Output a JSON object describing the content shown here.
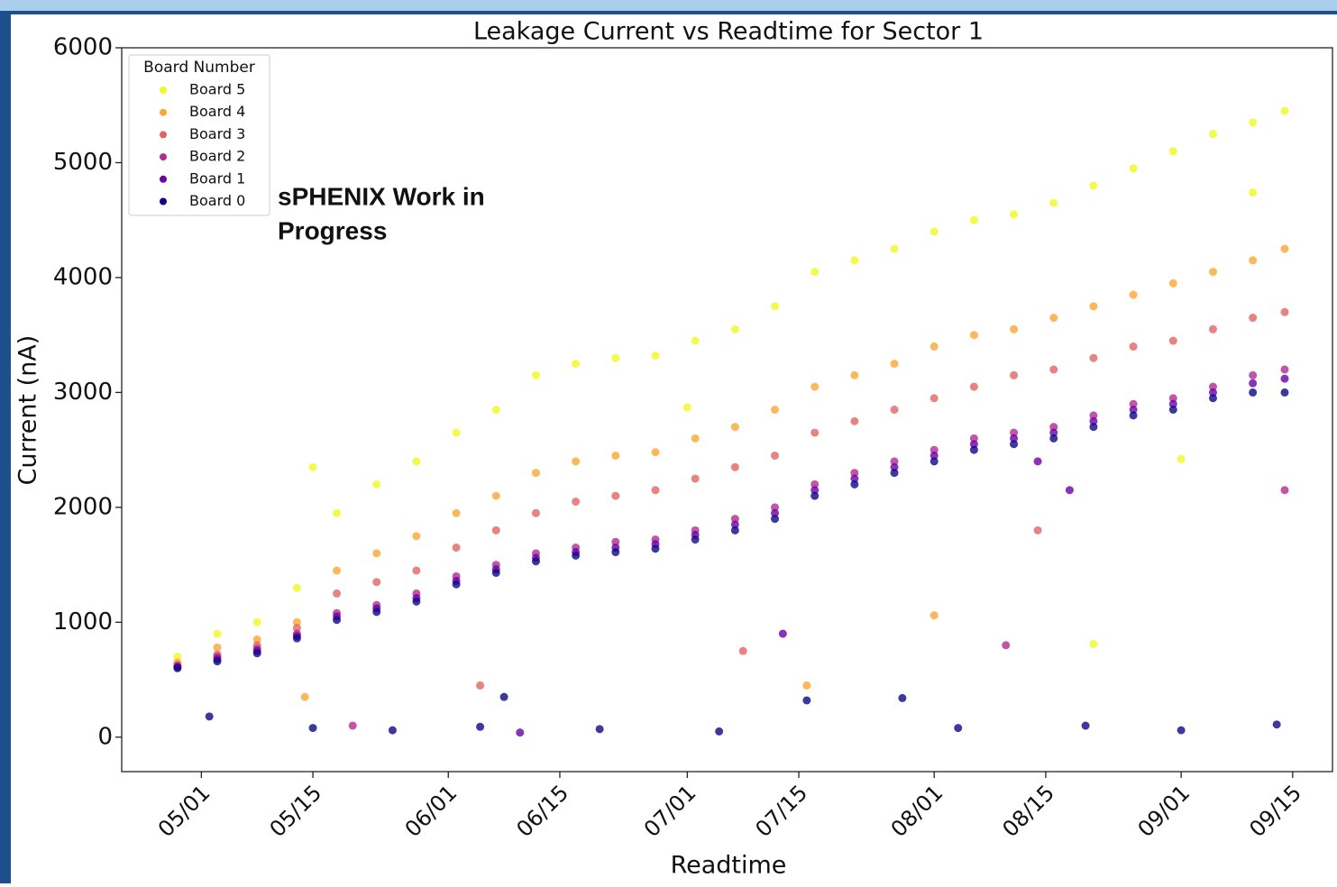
{
  "chart_data": {
    "type": "scatter",
    "title": "Leakage Current vs Readtime for Sector 1",
    "x_label": "Readtime",
    "y_label": "Current (nA)",
    "legend_title": "Board Number",
    "legend": "upper left",
    "annotation": [
      "sPHENIX Work in",
      "Progress"
    ],
    "xlim": [
      "04/21",
      "09/20"
    ],
    "xticks": [
      "05/01",
      "05/15",
      "06/01",
      "06/15",
      "07/01",
      "07/15",
      "08/01",
      "08/15",
      "09/01",
      "09/15"
    ],
    "ylim": [
      -300,
      6000
    ],
    "yticks": [
      0,
      1000,
      2000,
      3000,
      4000,
      5000,
      6000
    ],
    "series": [
      {
        "name": "Board 5",
        "color": "#f0f921",
        "x": [
          "04/28",
          "05/03",
          "05/08",
          "05/13",
          "05/18",
          "05/23",
          "05/28",
          "06/02",
          "06/07",
          "06/12",
          "06/17",
          "06/22",
          "06/27",
          "07/02",
          "07/07",
          "07/12",
          "07/17",
          "07/22",
          "07/27",
          "08/01",
          "08/06",
          "08/11",
          "08/16",
          "08/21",
          "08/26",
          "08/31",
          "09/05",
          "09/10",
          "09/14",
          "05/15",
          "07/01",
          "09/10",
          "09/01",
          "08/21"
        ],
        "values": [
          700,
          900,
          1000,
          1300,
          1950,
          2200,
          2400,
          2650,
          2850,
          3150,
          3250,
          3300,
          3320,
          3450,
          3550,
          3750,
          4050,
          4150,
          4250,
          4400,
          4500,
          4550,
          4650,
          4800,
          4950,
          5100,
          5250,
          5350,
          5450,
          2350,
          2870,
          4740,
          2420,
          810
        ]
      },
      {
        "name": "Board 4",
        "color": "#fca636",
        "x": [
          "04/28",
          "05/03",
          "05/08",
          "05/13",
          "05/18",
          "05/23",
          "05/28",
          "06/02",
          "06/07",
          "06/12",
          "06/17",
          "06/22",
          "06/27",
          "07/02",
          "07/07",
          "07/12",
          "07/17",
          "07/22",
          "07/27",
          "08/01",
          "08/06",
          "08/11",
          "08/16",
          "08/21",
          "08/26",
          "08/31",
          "09/05",
          "09/10",
          "09/14",
          "05/14",
          "07/16",
          "08/01"
        ],
        "values": [
          650,
          780,
          850,
          1000,
          1450,
          1600,
          1750,
          1950,
          2100,
          2300,
          2400,
          2450,
          2480,
          2600,
          2700,
          2850,
          3050,
          3150,
          3250,
          3400,
          3500,
          3550,
          3650,
          3750,
          3850,
          3950,
          4050,
          4150,
          4250,
          350,
          450,
          1060
        ]
      },
      {
        "name": "Board 3",
        "color": "#e16462",
        "x": [
          "04/28",
          "05/03",
          "05/08",
          "05/13",
          "05/18",
          "05/23",
          "05/28",
          "06/02",
          "06/07",
          "06/12",
          "06/17",
          "06/22",
          "06/27",
          "07/02",
          "07/07",
          "07/12",
          "07/17",
          "07/22",
          "07/27",
          "08/01",
          "08/06",
          "08/11",
          "08/16",
          "08/21",
          "08/26",
          "08/31",
          "09/05",
          "09/10",
          "09/14",
          "06/05",
          "07/08",
          "08/14"
        ],
        "values": [
          630,
          720,
          800,
          950,
          1250,
          1350,
          1450,
          1650,
          1800,
          1950,
          2050,
          2100,
          2150,
          2250,
          2350,
          2450,
          2650,
          2750,
          2850,
          2950,
          3050,
          3150,
          3200,
          3300,
          3400,
          3450,
          3550,
          3650,
          3700,
          450,
          750,
          1800
        ]
      },
      {
        "name": "Board 2",
        "color": "#b12a90",
        "x": [
          "04/28",
          "05/03",
          "05/08",
          "05/13",
          "05/18",
          "05/23",
          "05/28",
          "06/02",
          "06/07",
          "06/12",
          "06/17",
          "06/22",
          "06/27",
          "07/02",
          "07/07",
          "07/12",
          "07/17",
          "07/22",
          "07/27",
          "08/01",
          "08/06",
          "08/11",
          "08/16",
          "08/21",
          "08/26",
          "08/31",
          "09/05",
          "09/10",
          "09/14",
          "05/20",
          "08/10",
          "09/14"
        ],
        "values": [
          620,
          700,
          770,
          900,
          1080,
          1150,
          1250,
          1400,
          1500,
          1600,
          1650,
          1700,
          1720,
          1800,
          1900,
          2000,
          2200,
          2300,
          2400,
          2500,
          2600,
          2650,
          2700,
          2800,
          2900,
          2950,
          3050,
          3150,
          3200,
          100,
          800,
          2150
        ]
      },
      {
        "name": "Board 1",
        "color": "#6a00a8",
        "x": [
          "04/28",
          "05/03",
          "05/08",
          "05/13",
          "05/18",
          "05/23",
          "05/28",
          "06/02",
          "06/07",
          "06/12",
          "06/17",
          "06/22",
          "06/27",
          "07/02",
          "07/07",
          "07/12",
          "07/17",
          "07/22",
          "07/27",
          "08/01",
          "08/06",
          "08/11",
          "08/16",
          "08/21",
          "08/26",
          "08/31",
          "09/05",
          "09/10",
          "09/14",
          "06/10",
          "07/13",
          "08/14",
          "08/18"
        ],
        "values": [
          610,
          680,
          750,
          880,
          1050,
          1120,
          1210,
          1360,
          1460,
          1560,
          1610,
          1650,
          1680,
          1760,
          1850,
          1950,
          2150,
          2250,
          2350,
          2450,
          2550,
          2600,
          2650,
          2750,
          2850,
          2900,
          3000,
          3080,
          3120,
          40,
          900,
          2400,
          2150
        ]
      },
      {
        "name": "Board 0",
        "color": "#0d0887",
        "x": [
          "04/28",
          "05/03",
          "05/08",
          "05/13",
          "05/18",
          "05/23",
          "05/28",
          "06/02",
          "06/07",
          "06/12",
          "06/17",
          "06/22",
          "06/27",
          "07/02",
          "07/07",
          "07/12",
          "07/17",
          "07/22",
          "07/27",
          "08/01",
          "08/06",
          "08/11",
          "08/16",
          "08/21",
          "08/26",
          "08/31",
          "09/05",
          "09/10",
          "09/14",
          "05/02",
          "05/15",
          "05/25",
          "06/05",
          "06/08",
          "06/20",
          "07/05",
          "07/16",
          "07/28",
          "08/04",
          "08/20",
          "09/01",
          "09/13"
        ],
        "values": [
          600,
          660,
          730,
          860,
          1020,
          1090,
          1180,
          1330,
          1430,
          1530,
          1580,
          1610,
          1640,
          1720,
          1800,
          1900,
          2100,
          2200,
          2300,
          2400,
          2500,
          2550,
          2600,
          2700,
          2800,
          2850,
          2950,
          3000,
          3000,
          180,
          80,
          60,
          90,
          350,
          70,
          50,
          320,
          340,
          80,
          100,
          60,
          110
        ]
      }
    ]
  }
}
